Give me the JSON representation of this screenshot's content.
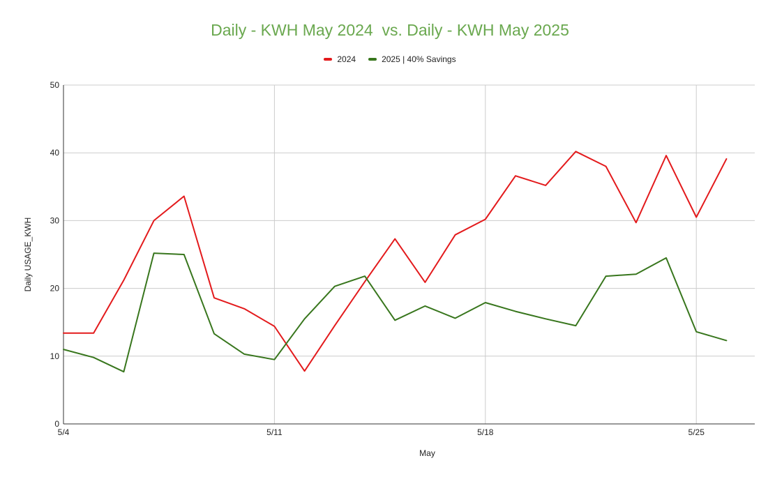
{
  "chart_data": {
    "type": "line",
    "title": "Daily - KWH May 2024  vs. Daily - KWH May 2025",
    "xlabel": "May",
    "ylabel": "Daily USAGE_KWH",
    "ylim": [
      0,
      50
    ],
    "yticks": [
      0,
      10,
      20,
      30,
      40,
      50
    ],
    "x": [
      "5/4",
      "5/5",
      "5/6",
      "5/7",
      "5/8",
      "5/9",
      "5/10",
      "5/11",
      "5/12",
      "5/13",
      "5/14",
      "5/15",
      "5/16",
      "5/17",
      "5/18",
      "5/19",
      "5/20",
      "5/21",
      "5/22",
      "5/23",
      "5/24",
      "5/25",
      "5/26"
    ],
    "xticks": [
      "5/4",
      "5/11",
      "5/18",
      "5/25"
    ],
    "grid": true,
    "legend_position": "top",
    "series": [
      {
        "name": "2024",
        "color": "#e31a1c",
        "values": [
          13.4,
          13.4,
          21.2,
          30.0,
          33.6,
          18.6,
          17.0,
          14.4,
          7.8,
          14.5,
          21.0,
          27.3,
          20.9,
          27.9,
          30.2,
          36.6,
          35.2,
          40.2,
          38.0,
          29.7,
          39.6,
          30.5,
          39.1
        ]
      },
      {
        "name": "2025 | 40% Savings",
        "color": "#38761d",
        "values": [
          11.0,
          9.8,
          7.7,
          25.2,
          25.0,
          13.3,
          10.3,
          9.5,
          15.5,
          20.3,
          21.8,
          15.3,
          17.4,
          15.6,
          17.9,
          16.6,
          15.5,
          14.5,
          21.8,
          22.1,
          24.5,
          13.6,
          12.3
        ]
      }
    ]
  }
}
